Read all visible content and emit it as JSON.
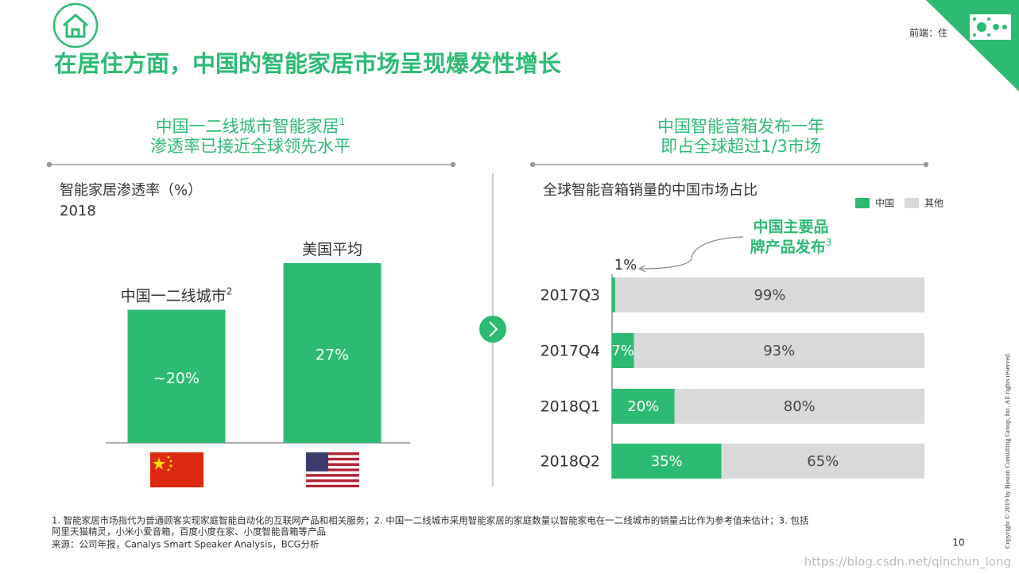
{
  "header": {
    "title": "在居住方面，中国的智能家居市场呈现爆发性增长",
    "tag": "前端：住"
  },
  "panels": [
    {
      "heading": [
        "中国一二线城市智能家居",
        "渗透率已接近全球领先水平"
      ],
      "heading_note": "1"
    },
    {
      "heading": [
        "中国智能音箱发布一年",
        "即占全球超过1/3市场"
      ]
    }
  ],
  "chart_data": [
    {
      "type": "bar",
      "title": "智能家居渗透率（%）",
      "subtitle": "2018",
      "categories": [
        "中国一二线城市",
        "美国平均"
      ],
      "category_note": "2",
      "values": [
        20,
        27
      ],
      "value_labels": [
        "~20%",
        "27%"
      ],
      "color": "#2dbb73"
    },
    {
      "type": "stacked_bar_horizontal",
      "title": "全球智能音箱销量的中国市场占比",
      "categories": [
        "2017Q3",
        "2017Q4",
        "2018Q1",
        "2018Q2"
      ],
      "series": [
        {
          "name": "中国",
          "color": "#2dbb73",
          "values": [
            1,
            7,
            20,
            35
          ],
          "value_labels": [
            "1%",
            "7%",
            "20%",
            "35%"
          ]
        },
        {
          "name": "其他",
          "color": "#d9d9d9",
          "values": [
            99,
            93,
            80,
            65
          ],
          "value_labels": [
            "99%",
            "93%",
            "80%",
            "65%"
          ]
        }
      ],
      "xlim": [
        0,
        100
      ],
      "legend": "top-right",
      "annotation": {
        "lines": [
          "中国主要品",
          "牌产品发布"
        ],
        "note": "3"
      }
    }
  ],
  "footnotes": [
    "1. 智能家居市场指代为普通顾客实现家庭智能自动化的互联网产品和相关服务；2. 中国一二线城市采用智能家居的家庭数量以智能家电在一二线城市的销量占比作为参考值来估计；3. 包括",
    "阿里天猫精灵，小米小爱音箱，百度小度在家、小度智能音箱等产品",
    "来源：公司年报，Canalys Smart Speaker Analysis，BCG分析"
  ],
  "page_number": "10",
  "copyright": "Copyright © 2019 by Boston Consulting Group, Inc. All rights reserved.",
  "watermark": "https://blog.csdn.net/qinchun_long"
}
